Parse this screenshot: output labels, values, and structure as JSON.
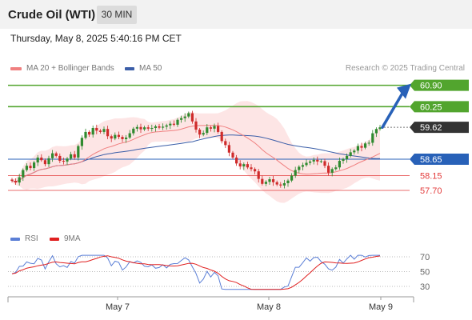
{
  "header": {
    "title": "Crude Oil (WTI)",
    "timeframe": "30 MIN"
  },
  "datetime": "Thursday, May 8, 2025 5:40:16 PM CET",
  "legend": {
    "ma20": "MA 20 + Bollinger Bands",
    "ma50": "MA 50",
    "source": "Research © 2025 Trading Central"
  },
  "rsi_legend": {
    "rsi": "RSI",
    "ma9": "9MA"
  },
  "colors": {
    "resistance": "#52a52e",
    "current": "#333333",
    "pivot": "#2861b8",
    "support": "#e33b3b",
    "ma20": "#f08080",
    "ma50": "#3b5ea8",
    "bollinger": "#fde0e0",
    "candle_up": "#2f8a2f",
    "candle_down": "#cf2b2b",
    "rsi": "#5b7fd6",
    "rsi_ma": "#e02020"
  },
  "chart_data": [
    {
      "type": "candlestick",
      "x_axis_labels": [
        "May 7",
        "May 8",
        "May 9"
      ],
      "ylim": [
        56.9,
        61.3
      ],
      "levels": [
        {
          "label": "60.90",
          "value": 60.9,
          "kind": "resistance"
        },
        {
          "label": "60.25",
          "value": 60.25,
          "kind": "resistance"
        },
        {
          "label": "59.62",
          "value": 59.62,
          "kind": "current"
        },
        {
          "label": "58.65",
          "value": 58.65,
          "kind": "pivot"
        },
        {
          "label": "58.15",
          "value": 58.15,
          "kind": "support"
        },
        {
          "label": "57.70",
          "value": 57.7,
          "kind": "support"
        }
      ],
      "target_arrow": {
        "from": 59.62,
        "to": 60.9
      },
      "close": [
        57.99,
        57.94,
        58.1,
        58.32,
        58.45,
        58.38,
        58.55,
        58.7,
        58.62,
        58.5,
        58.68,
        58.83,
        58.75,
        58.6,
        58.58,
        58.67,
        58.8,
        58.7,
        59.05,
        59.3,
        59.48,
        59.4,
        59.6,
        59.52,
        59.48,
        59.57,
        59.35,
        59.28,
        59.39,
        59.33,
        59.26,
        59.31,
        59.44,
        59.58,
        59.63,
        59.56,
        59.62,
        59.58,
        59.6,
        59.65,
        59.61,
        59.64,
        59.68,
        59.73,
        59.7,
        59.85,
        59.9,
        59.95,
        60.05,
        59.8,
        59.55,
        59.4,
        59.45,
        59.62,
        59.58,
        59.66,
        59.48,
        59.2,
        59.08,
        58.85,
        58.7,
        58.52,
        58.43,
        58.5,
        58.4,
        58.35,
        58.28,
        58.05,
        57.9,
        57.96,
        58.04,
        57.95,
        57.88,
        57.85,
        57.92,
        58.0,
        58.15,
        58.32,
        58.42,
        58.47,
        58.54,
        58.58,
        58.63,
        58.58,
        58.59,
        58.45,
        58.24,
        58.35,
        58.4,
        58.6,
        58.65,
        58.75,
        58.86,
        58.91,
        59.05,
        59.0,
        59.13,
        59.15,
        59.44,
        59.57,
        59.62
      ],
      "rsi": {
        "levels": [
          70,
          50,
          30
        ]
      }
    }
  ]
}
